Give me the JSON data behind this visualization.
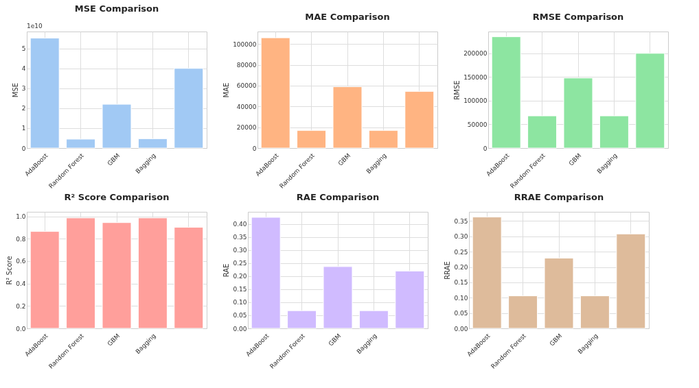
{
  "chart_data": [
    {
      "type": "bar",
      "title": "MSE Comparison",
      "ylabel": "MSE",
      "categories": [
        "AdaBoost",
        "Random Forest",
        "GBM",
        "Bagging",
        null
      ],
      "values": [
        5.52,
        0.45,
        2.2,
        0.47,
        4.0
      ],
      "color": "#a1c9f4",
      "ylim": [
        0,
        5.85
      ],
      "yticks": [
        0,
        1,
        2,
        3,
        4,
        5
      ],
      "annotations": [
        "1e10"
      ],
      "grid": true
    },
    {
      "type": "bar",
      "title": "MAE Comparison",
      "ylabel": "MAE",
      "categories": [
        "AdaBoost",
        "Random Forest",
        "GBM",
        "Bagging",
        null
      ],
      "values": [
        106000,
        17000,
        59000,
        17000,
        54500
      ],
      "color": "#ffb482",
      "ylim": [
        0,
        112000
      ],
      "yticks": [
        0,
        20000,
        40000,
        60000,
        80000,
        100000
      ],
      "grid": true
    },
    {
      "type": "bar",
      "title": "RMSE Comparison",
      "ylabel": "RMSE",
      "categories": [
        "AdaBoost",
        "Random Forest",
        "GBM",
        "Bagging",
        null
      ],
      "values": [
        235000,
        68000,
        148000,
        68000,
        200000
      ],
      "color": "#8de5a1",
      "ylim": [
        0,
        246000
      ],
      "yticks": [
        0,
        50000,
        100000,
        150000,
        200000
      ],
      "grid": true
    },
    {
      "type": "bar",
      "title": "R² Score Comparison",
      "ylabel": "R² Score",
      "categories": [
        "AdaBoost",
        "Random Forest",
        "GBM",
        "Bagging",
        null
      ],
      "values": [
        0.865,
        0.986,
        0.944,
        0.986,
        0.902
      ],
      "color": "#ff9f9b",
      "ylim": [
        0,
        1.04
      ],
      "yticks": [
        {
          "value": 0,
          "label": "0.0"
        },
        0.2,
        0.4,
        0.6,
        0.8,
        {
          "value": 1,
          "label": "1.0"
        }
      ],
      "grid": true
    },
    {
      "type": "bar",
      "title": "RAE Comparison",
      "ylabel": "RAE",
      "categories": [
        "AdaBoost",
        "Random Forest",
        "GBM",
        "Bagging",
        null
      ],
      "values": [
        0.426,
        0.068,
        0.237,
        0.068,
        0.22
      ],
      "color": "#d0bbff",
      "ylim": [
        0,
        0.447
      ],
      "yticks": [
        {
          "value": 0,
          "label": "0.00"
        },
        0.05,
        {
          "value": 0.1,
          "label": "0.10"
        },
        0.15,
        {
          "value": 0.2,
          "label": "0.20"
        },
        0.25,
        {
          "value": 0.3,
          "label": "0.30"
        },
        0.35,
        {
          "value": 0.4,
          "label": "0.40"
        }
      ],
      "grid": true
    },
    {
      "type": "bar",
      "title": "RRAE Comparison",
      "ylabel": "RRAE",
      "categories": [
        "AdaBoost",
        "Random Forest",
        "GBM",
        "Bagging",
        null
      ],
      "values": [
        0.363,
        0.106,
        0.229,
        0.106,
        0.308
      ],
      "color": "#debb9b",
      "ylim": [
        0,
        0.38
      ],
      "yticks": [
        {
          "value": 0,
          "label": "0.00"
        },
        0.05,
        {
          "value": 0.1,
          "label": "0.10"
        },
        0.15,
        {
          "value": 0.2,
          "label": "0.20"
        },
        0.25,
        {
          "value": 0.3,
          "label": "0.30"
        },
        0.35
      ],
      "grid": true
    }
  ]
}
